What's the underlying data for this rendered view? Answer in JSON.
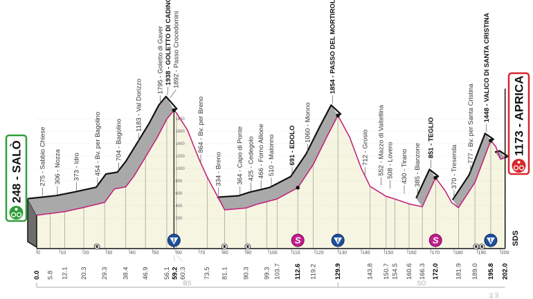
{
  "chart_data": {
    "type": "area",
    "title": "",
    "xlabel": "",
    "ylabel": "",
    "xlim": [
      0,
      202
    ],
    "ylim": [
      0,
      2000
    ],
    "x_ticks": [
      0,
      10,
      20,
      30,
      40,
      50,
      60,
      70,
      80,
      90,
      100,
      110,
      120,
      130,
      140,
      150,
      160,
      170,
      180,
      190,
      200
    ],
    "y_ticks": [
      200,
      400,
      600,
      800,
      1000,
      1200,
      1400,
      1600,
      1800
    ],
    "grid": true,
    "colors": {
      "profile_line": "#c2237d",
      "fill": "#f6f5e1",
      "climb_band": "#a9a9a9",
      "outline": "#111111",
      "start": "#2e9e3a",
      "finish": "#d8262b",
      "kom": "#1f4f9c",
      "sprint": "#c21d8c"
    },
    "profile": [
      [
        0,
        248
      ],
      [
        5.8,
        275
      ],
      [
        12.1,
        306
      ],
      [
        20.3,
        373
      ],
      [
        29.3,
        454
      ],
      [
        33.5,
        670
      ],
      [
        38.4,
        704
      ],
      [
        42,
        880
      ],
      [
        46.9,
        1183
      ],
      [
        52,
        1500
      ],
      [
        56.1,
        1795
      ],
      [
        59.2,
        1938
      ],
      [
        60.3,
        1892
      ],
      [
        65,
        1620
      ],
      [
        70,
        1150
      ],
      [
        73.5,
        864
      ],
      [
        81.1,
        334
      ],
      [
        90.3,
        364
      ],
      [
        95,
        425
      ],
      [
        99.3,
        466
      ],
      [
        103.7,
        510
      ],
      [
        112.6,
        691
      ],
      [
        119.2,
        1060
      ],
      [
        125,
        1500
      ],
      [
        129.9,
        1854
      ],
      [
        135,
        1500
      ],
      [
        140,
        1000
      ],
      [
        143.8,
        712
      ],
      [
        150.7,
        552
      ],
      [
        154.5,
        508
      ],
      [
        160.6,
        430
      ],
      [
        166.3,
        385
      ],
      [
        172.0,
        851
      ],
      [
        176,
        650
      ],
      [
        179,
        450
      ],
      [
        181.9,
        370
      ],
      [
        189.0,
        777
      ],
      [
        195.8,
        1448
      ],
      [
        198,
        1350
      ],
      [
        200,
        1150
      ],
      [
        202.0,
        1173
      ]
    ],
    "place_labels": [
      {
        "km": 5.8,
        "text": "275 - Sabbio Chiese",
        "bold": false
      },
      {
        "km": 12.1,
        "text": "306 - Nozza",
        "bold": false
      },
      {
        "km": 20.3,
        "text": "373 - Idro",
        "bold": false
      },
      {
        "km": 29.3,
        "text": "454 - Bv. per Bagolino",
        "bold": false
      },
      {
        "km": 38.4,
        "text": "704 - Bagolino",
        "bold": false
      },
      {
        "km": 46.9,
        "text": "1183 - Val Dorizzo",
        "bold": false
      },
      {
        "km": 56.1,
        "text": "1795 - Goletto di Gaver",
        "bold": false
      },
      {
        "km": 59.2,
        "text": "1938 - GOLETTO DI CADINO",
        "bold": true
      },
      {
        "km": 60.3,
        "text": "1892 - Passo Crocedomini",
        "bold": false
      },
      {
        "km": 73.5,
        "text": "864 - Bv. per Breno",
        "bold": false
      },
      {
        "km": 81.1,
        "text": "334 - Breno",
        "bold": false
      },
      {
        "km": 90.3,
        "text": "364 - Capo di Ponte",
        "bold": false
      },
      {
        "km": 95,
        "text": "425 - Cedegolo",
        "bold": false
      },
      {
        "km": 99.3,
        "text": "466 - Forno Allione",
        "bold": false
      },
      {
        "km": 103.7,
        "text": "510 - Malonno",
        "bold": false
      },
      {
        "km": 112.6,
        "text": "691 - EDOLO",
        "bold": true
      },
      {
        "km": 119.2,
        "text": "1060 - Monno",
        "bold": false
      },
      {
        "km": 129.9,
        "text": "1854 - PASSO DEL MORTIROLO",
        "bold": true
      },
      {
        "km": 143.8,
        "text": "712 - Grosio",
        "bold": false
      },
      {
        "km": 150.7,
        "text": "552 - Mazzo di Valtellina",
        "bold": false
      },
      {
        "km": 154.5,
        "text": "508 - Lovero",
        "bold": false
      },
      {
        "km": 160.6,
        "text": "430 - Tirano",
        "bold": false
      },
      {
        "km": 166.3,
        "text": "385 - Bianzone",
        "bold": false
      },
      {
        "km": 172.0,
        "text": "851 - TEGLIO",
        "bold": true
      },
      {
        "km": 181.9,
        "text": "370 - Tresenda",
        "bold": false
      },
      {
        "km": 189.0,
        "text": "777 - Bv. per Santa Cristina",
        "bold": false
      },
      {
        "km": 195.8,
        "text": "1448 - VALICO DI SANTA CRISTINA",
        "bold": true
      }
    ],
    "km_labels": [
      {
        "km": 0,
        "text": "0.0",
        "bold": true
      },
      {
        "km": 5.8,
        "text": "5.8",
        "bold": false
      },
      {
        "km": 12.1,
        "text": "12.1",
        "bold": false
      },
      {
        "km": 20.3,
        "text": "20.3",
        "bold": false
      },
      {
        "km": 29.3,
        "text": "29.3",
        "bold": false
      },
      {
        "km": 38.4,
        "text": "38.4",
        "bold": false
      },
      {
        "km": 46.9,
        "text": "46.9",
        "bold": false
      },
      {
        "km": 56.1,
        "text": "56.1",
        "bold": false
      },
      {
        "km": 59.2,
        "text": "59.2",
        "bold": true
      },
      {
        "km": 60.3,
        "text": "60.3",
        "bold": false
      },
      {
        "km": 73.5,
        "text": "73.5",
        "bold": false
      },
      {
        "km": 81.1,
        "text": "81.1",
        "bold": false
      },
      {
        "km": 90.3,
        "text": "90.3",
        "bold": false
      },
      {
        "km": 99.3,
        "text": "99.3",
        "bold": false
      },
      {
        "km": 103.7,
        "text": "103.7",
        "bold": false
      },
      {
        "km": 112.6,
        "text": "112.6",
        "bold": true
      },
      {
        "km": 119.2,
        "text": "119.2",
        "bold": false
      },
      {
        "km": 129.9,
        "text": "129.9",
        "bold": true
      },
      {
        "km": 143.8,
        "text": "143.8",
        "bold": false
      },
      {
        "km": 150.7,
        "text": "150.7",
        "bold": false
      },
      {
        "km": 154.5,
        "text": "154.5",
        "bold": false
      },
      {
        "km": 160.6,
        "text": "160.6",
        "bold": false
      },
      {
        "km": 166.3,
        "text": "166.3",
        "bold": false
      },
      {
        "km": 172.0,
        "text": "172.0",
        "bold": true
      },
      {
        "km": 181.9,
        "text": "181.9",
        "bold": false
      },
      {
        "km": 189.0,
        "text": "189.0",
        "bold": false
      },
      {
        "km": 195.8,
        "text": "195.8",
        "bold": true
      },
      {
        "km": 202.0,
        "text": "202.0",
        "bold": true
      }
    ],
    "kom_points": [
      {
        "km": 59.2,
        "icon": "kom-icon",
        "symbol": "V"
      },
      {
        "km": 129.9,
        "icon": "kom-icon",
        "symbol": "V"
      },
      {
        "km": 195.8,
        "icon": "kom-icon",
        "symbol": "V"
      }
    ],
    "sprint_points": [
      {
        "km": 112.6,
        "icon": "sprint-icon",
        "symbol": "S"
      },
      {
        "km": 172.0,
        "icon": "sprint-icon",
        "symbol": "S"
      }
    ],
    "small_markers": [
      {
        "km": 26,
        "icon": "feed-zone-icon"
      },
      {
        "km": 81,
        "icon": "level-crossing-icon"
      },
      {
        "km": 91,
        "icon": "level-crossing-icon"
      },
      {
        "km": 189.5,
        "icon": "level-crossing-icon"
      },
      {
        "km": 192,
        "icon": "feed-zone-icon"
      }
    ],
    "start": {
      "label": "248 - SALÒ",
      "icon": "bicycle-icon"
    },
    "finish": {
      "label": "1173 - APRICA",
      "icon": "bicycle-icon"
    },
    "zones": [
      {
        "label": "BS",
        "from": 0,
        "to": 129.9
      },
      {
        "label": "SO",
        "from": 129.9,
        "to": 202
      }
    ],
    "end_zone_labels": [
      "BS",
      "SO"
    ],
    "brand": "SDS"
  }
}
